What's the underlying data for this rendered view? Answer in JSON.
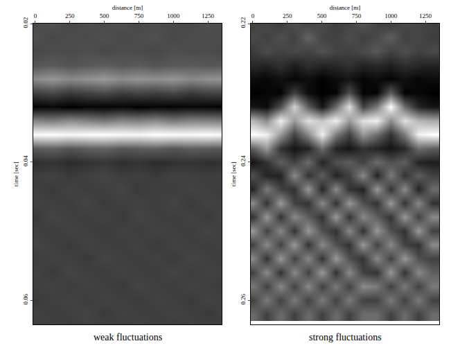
{
  "chart_data": [
    {
      "type": "heatmap",
      "xlabel": "distance [m]",
      "ylabel": "time [sec]",
      "caption": "weak fluctuations",
      "xlim": [
        -15,
        1350
      ],
      "ylim": [
        0.02,
        0.0635
      ],
      "xticks": [
        0,
        250,
        500,
        750,
        1000,
        1250
      ],
      "yticks": [
        0.02,
        0.04,
        0.06
      ],
      "x": [
        0,
        125,
        250,
        375,
        500,
        625,
        750,
        875,
        1000,
        1125,
        1250,
        1375
      ],
      "y": [
        0.02,
        0.022,
        0.024,
        0.026,
        0.028,
        0.03,
        0.032,
        0.034,
        0.036,
        0.038,
        0.04,
        0.042,
        0.044,
        0.046,
        0.048,
        0.05,
        0.052,
        0.054,
        0.056,
        0.058,
        0.06,
        0.062,
        0.064
      ],
      "cells": [
        [
          0.34,
          0.36,
          0.33,
          0.35,
          0.34,
          0.36,
          0.33,
          0.35,
          0.34,
          0.33,
          0.36,
          0.34
        ],
        [
          0.36,
          0.33,
          0.35,
          0.34,
          0.36,
          0.33,
          0.35,
          0.36,
          0.33,
          0.35,
          0.34,
          0.35
        ],
        [
          0.33,
          0.35,
          0.34,
          0.36,
          0.33,
          0.35,
          0.34,
          0.33,
          0.36,
          0.34,
          0.35,
          0.33
        ],
        [
          0.38,
          0.4,
          0.37,
          0.39,
          0.41,
          0.38,
          0.4,
          0.37,
          0.39,
          0.4,
          0.38,
          0.39
        ],
        [
          0.58,
          0.62,
          0.57,
          0.6,
          0.63,
          0.58,
          0.61,
          0.59,
          0.62,
          0.57,
          0.6,
          0.61
        ],
        [
          0.3,
          0.33,
          0.28,
          0.31,
          0.34,
          0.29,
          0.32,
          0.3,
          0.33,
          0.28,
          0.31,
          0.32
        ],
        [
          0.08,
          0.1,
          0.07,
          0.09,
          0.08,
          0.1,
          0.07,
          0.09,
          0.08,
          0.1,
          0.09,
          0.08
        ],
        [
          0.55,
          0.52,
          0.58,
          0.54,
          0.5,
          0.56,
          0.53,
          0.57,
          0.51,
          0.55,
          0.54,
          0.52
        ],
        [
          0.98,
          1.0,
          0.97,
          0.99,
          1.0,
          0.98,
          0.97,
          1.0,
          0.99,
          0.98,
          1.0,
          0.97
        ],
        [
          0.4,
          0.42,
          0.38,
          0.41,
          0.43,
          0.39,
          0.4,
          0.42,
          0.38,
          0.41,
          0.4,
          0.39
        ],
        [
          0.24,
          0.26,
          0.23,
          0.25,
          0.27,
          0.24,
          0.26,
          0.23,
          0.25,
          0.26,
          0.24,
          0.25
        ],
        [
          0.29,
          0.31,
          0.28,
          0.3,
          0.32,
          0.29,
          0.3,
          0.28,
          0.31,
          0.3,
          0.29,
          0.31
        ],
        [
          0.3,
          0.28,
          0.31,
          0.29,
          0.3,
          0.32,
          0.28,
          0.3,
          0.29,
          0.31,
          0.3,
          0.28
        ],
        [
          0.31,
          0.3,
          0.29,
          0.32,
          0.28,
          0.3,
          0.31,
          0.29,
          0.32,
          0.28,
          0.31,
          0.3
        ],
        [
          0.28,
          0.32,
          0.3,
          0.29,
          0.31,
          0.28,
          0.32,
          0.3,
          0.29,
          0.31,
          0.28,
          0.32
        ],
        [
          0.3,
          0.29,
          0.31,
          0.3,
          0.28,
          0.31,
          0.29,
          0.31,
          0.3,
          0.29,
          0.32,
          0.29
        ],
        [
          0.32,
          0.3,
          0.28,
          0.31,
          0.3,
          0.29,
          0.31,
          0.28,
          0.31,
          0.3,
          0.29,
          0.31
        ],
        [
          0.29,
          0.31,
          0.3,
          0.28,
          0.32,
          0.3,
          0.29,
          0.31,
          0.28,
          0.32,
          0.3,
          0.29
        ],
        [
          0.31,
          0.28,
          0.32,
          0.3,
          0.29,
          0.31,
          0.3,
          0.29,
          0.32,
          0.29,
          0.31,
          0.3
        ],
        [
          0.3,
          0.31,
          0.29,
          0.31,
          0.3,
          0.28,
          0.32,
          0.3,
          0.29,
          0.31,
          0.3,
          0.28
        ],
        [
          0.28,
          0.3,
          0.31,
          0.29,
          0.31,
          0.3,
          0.28,
          0.31,
          0.3,
          0.28,
          0.31,
          0.3
        ],
        [
          0.31,
          0.29,
          0.3,
          0.32,
          0.28,
          0.31,
          0.3,
          0.29,
          0.31,
          0.3,
          0.28,
          0.31
        ],
        [
          0.29,
          0.31,
          0.28,
          0.3,
          0.31,
          0.29,
          0.31,
          0.3,
          0.28,
          0.31,
          0.3,
          0.29
        ]
      ]
    },
    {
      "type": "heatmap",
      "xlabel": "distance [m]",
      "ylabel": "time [sec]",
      "caption": "strong fluctuations",
      "xlim": [
        -15,
        1350
      ],
      "ylim": [
        0.22,
        0.2635
      ],
      "xticks": [
        0,
        250,
        500,
        750,
        1000,
        1250
      ],
      "yticks": [
        0.22,
        0.24,
        0.26
      ],
      "x": [
        0,
        100,
        200,
        300,
        400,
        500,
        600,
        700,
        800,
        900,
        1000,
        1100,
        1200,
        1300
      ],
      "y": [
        0.22,
        0.222,
        0.224,
        0.226,
        0.228,
        0.23,
        0.232,
        0.234,
        0.236,
        0.238,
        0.24,
        0.242,
        0.244,
        0.246,
        0.248,
        0.25,
        0.252,
        0.254,
        0.256,
        0.258,
        0.26,
        0.262
      ],
      "cells": [
        [
          0.3,
          0.32,
          0.28,
          0.35,
          0.3,
          0.33,
          0.29,
          0.31,
          0.36,
          0.3,
          0.28,
          0.33,
          0.31,
          0.3
        ],
        [
          0.33,
          0.3,
          0.35,
          0.3,
          0.42,
          0.31,
          0.3,
          0.34,
          0.3,
          0.33,
          0.4,
          0.3,
          0.32,
          0.29
        ],
        [
          0.28,
          0.34,
          0.3,
          0.33,
          0.3,
          0.36,
          0.31,
          0.3,
          0.33,
          0.38,
          0.3,
          0.35,
          0.3,
          0.33
        ],
        [
          0.22,
          0.2,
          0.25,
          0.18,
          0.24,
          0.2,
          0.22,
          0.25,
          0.2,
          0.22,
          0.19,
          0.24,
          0.21,
          0.2
        ],
        [
          0.12,
          0.1,
          0.14,
          0.1,
          0.13,
          0.09,
          0.12,
          0.15,
          0.1,
          0.12,
          0.09,
          0.14,
          0.1,
          0.12
        ],
        [
          0.08,
          0.1,
          0.09,
          0.3,
          0.12,
          0.08,
          0.1,
          0.35,
          0.09,
          0.1,
          0.4,
          0.09,
          0.11,
          0.08
        ],
        [
          0.15,
          0.12,
          0.35,
          0.8,
          0.4,
          0.15,
          0.45,
          0.85,
          0.3,
          0.5,
          0.95,
          0.45,
          0.2,
          0.15
        ],
        [
          0.7,
          0.55,
          0.9,
          0.6,
          0.85,
          0.75,
          0.9,
          0.6,
          0.85,
          0.9,
          0.55,
          0.85,
          0.7,
          0.65
        ],
        [
          0.95,
          0.9,
          0.6,
          0.3,
          0.55,
          0.9,
          0.5,
          0.3,
          0.6,
          0.45,
          0.25,
          0.5,
          0.9,
          0.95
        ],
        [
          0.4,
          0.6,
          0.25,
          0.15,
          0.2,
          0.45,
          0.2,
          0.15,
          0.25,
          0.2,
          0.15,
          0.22,
          0.45,
          0.4
        ],
        [
          0.15,
          0.25,
          0.4,
          0.3,
          0.45,
          0.2,
          0.35,
          0.4,
          0.3,
          0.45,
          0.35,
          0.4,
          0.2,
          0.18
        ],
        [
          0.35,
          0.2,
          0.2,
          0.55,
          0.25,
          0.4,
          0.2,
          0.3,
          0.55,
          0.2,
          0.5,
          0.25,
          0.4,
          0.3
        ],
        [
          0.2,
          0.5,
          0.3,
          0.25,
          0.6,
          0.2,
          0.55,
          0.25,
          0.2,
          0.6,
          0.25,
          0.55,
          0.2,
          0.45
        ],
        [
          0.55,
          0.25,
          0.6,
          0.3,
          0.25,
          0.55,
          0.25,
          0.6,
          0.35,
          0.25,
          0.6,
          0.25,
          0.55,
          0.25
        ],
        [
          0.25,
          0.6,
          0.25,
          0.55,
          0.4,
          0.25,
          0.6,
          0.25,
          0.55,
          0.4,
          0.25,
          0.6,
          0.3,
          0.55
        ],
        [
          0.6,
          0.3,
          0.55,
          0.25,
          0.6,
          0.35,
          0.25,
          0.55,
          0.25,
          0.6,
          0.35,
          0.25,
          0.6,
          0.3
        ],
        [
          0.3,
          0.55,
          0.3,
          0.6,
          0.25,
          0.55,
          0.35,
          0.25,
          0.6,
          0.3,
          0.55,
          0.3,
          0.25,
          0.55
        ],
        [
          0.55,
          0.25,
          0.6,
          0.3,
          0.55,
          0.25,
          0.6,
          0.35,
          0.25,
          0.55,
          0.3,
          0.6,
          0.35,
          0.3
        ],
        [
          0.3,
          0.55,
          0.25,
          0.55,
          0.3,
          0.6,
          0.25,
          0.55,
          0.3,
          0.25,
          0.6,
          0.25,
          0.55,
          0.4
        ],
        [
          0.5,
          0.3,
          0.55,
          0.3,
          0.55,
          0.3,
          0.5,
          0.3,
          0.55,
          0.5,
          0.3,
          0.5,
          0.3,
          0.5
        ],
        [
          0.3,
          0.5,
          0.3,
          0.5,
          0.3,
          0.5,
          0.3,
          0.5,
          0.3,
          0.3,
          0.5,
          0.3,
          0.5,
          0.3
        ],
        [
          0.45,
          0.3,
          0.45,
          0.3,
          0.45,
          0.3,
          0.45,
          0.3,
          0.45,
          0.45,
          0.3,
          0.45,
          0.3,
          0.45
        ]
      ]
    }
  ]
}
